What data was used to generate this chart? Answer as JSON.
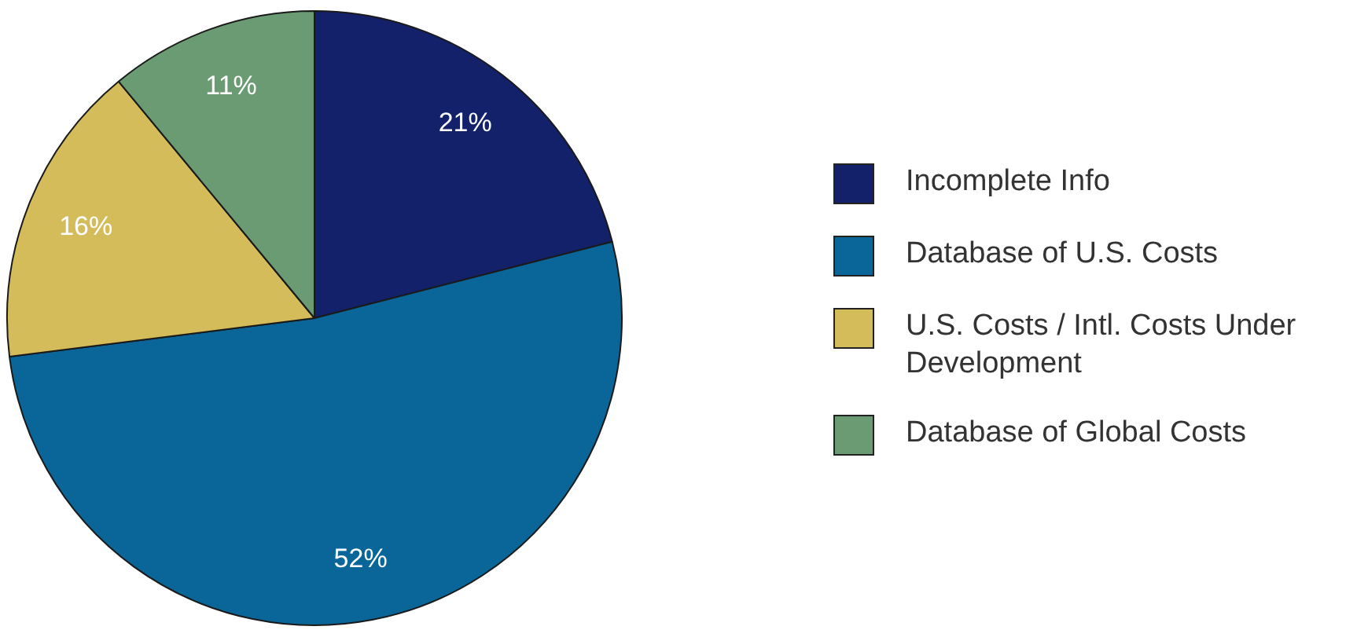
{
  "chart_data": {
    "type": "pie",
    "categories": [
      "Incomplete Info",
      "Database of U.S. Costs",
      "U.S. Costs / Intl. Costs Under Development",
      "Database of Global Costs"
    ],
    "values": [
      21,
      52,
      16,
      11
    ],
    "colors": [
      "#12216a",
      "#0a6699",
      "#d4bc5a",
      "#6b9b72"
    ],
    "value_labels": [
      "21%",
      "52%",
      "16%",
      "11%"
    ],
    "legend": "right"
  }
}
